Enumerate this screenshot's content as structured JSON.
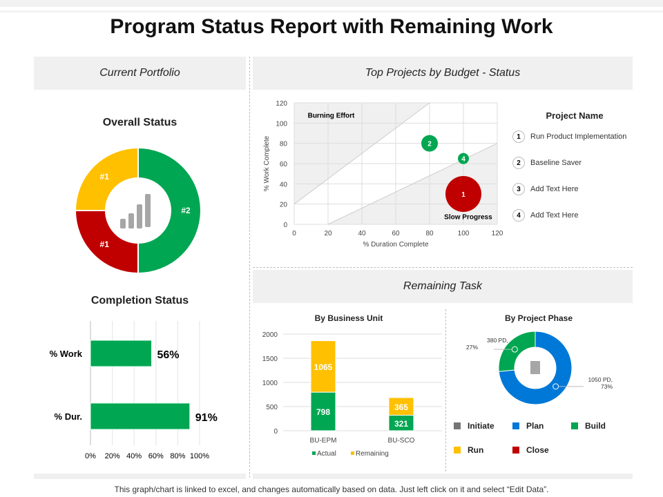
{
  "title": "Program Status Report with Remaining Work",
  "panels": {
    "current_portfolio": "Current Portfolio",
    "top_projects": "Top Projects by Budget - Status",
    "remaining_task": "Remaining Task"
  },
  "footer": "This graph/chart is linked to excel, and changes automatically based on data. Just left click on it and select “Edit Data”.",
  "colors": {
    "green": "#00a651",
    "red": "#c00000",
    "yellow": "#ffc000",
    "blue": "#0078d7",
    "gray": "#757575"
  },
  "project_legend": {
    "title": "Project Name",
    "items": [
      {
        "num": "1",
        "name": "Run Product Implementation"
      },
      {
        "num": "2",
        "name": "Baseline Saver"
      },
      {
        "num": "3",
        "name": "Add Text Here"
      },
      {
        "num": "4",
        "name": "Add Text Here"
      }
    ]
  },
  "chart_data": [
    {
      "id": "overall",
      "type": "pie",
      "title": "Overall Status",
      "slices": [
        {
          "label": "#2",
          "value": 50,
          "color": "#00a651"
        },
        {
          "label": "#1",
          "value": 25,
          "color": "#c00000"
        },
        {
          "label": "#1",
          "value": 25,
          "color": "#ffc000"
        }
      ]
    },
    {
      "id": "completion",
      "type": "bar",
      "title": "Completion Status",
      "categories": [
        "% Work",
        "% Dur."
      ],
      "values": [
        56,
        91
      ],
      "labels": [
        "56%",
        "91%"
      ],
      "xticks": [
        "0%",
        "20%",
        "40%",
        "60%",
        "80%",
        "100%"
      ],
      "xlim": [
        0,
        100
      ]
    },
    {
      "id": "scatter",
      "type": "scatter",
      "xlabel": "% Duration Complete",
      "ylabel": "% Work Complete",
      "xlim": [
        0,
        120
      ],
      "ylim": [
        0,
        120
      ],
      "xticks": [
        0,
        20,
        40,
        60,
        80,
        100,
        120
      ],
      "yticks": [
        0,
        20,
        40,
        60,
        80,
        100,
        120
      ],
      "annotations": [
        "Burning Effort",
        "Slow Progress"
      ],
      "points": [
        {
          "label": "2",
          "x": 80,
          "y": 80,
          "size": 12,
          "color": "#00a651"
        },
        {
          "label": "4",
          "x": 100,
          "y": 65,
          "size": 8,
          "color": "#00a651"
        },
        {
          "label": "1",
          "x": 100,
          "y": 30,
          "size": 26,
          "color": "#c00000"
        }
      ]
    },
    {
      "id": "business_unit",
      "type": "bar",
      "title": "By Business Unit",
      "categories": [
        "BU-EPM",
        "BU-SCO"
      ],
      "ylim": [
        0,
        2000
      ],
      "yticks": [
        0,
        500,
        1000,
        1500,
        2000
      ],
      "series": [
        {
          "name": "Actual",
          "values": [
            798,
            321
          ],
          "color": "#00a651"
        },
        {
          "name": "Remaining",
          "values": [
            1065,
            365
          ],
          "color": "#ffc000"
        }
      ]
    },
    {
      "id": "project_phase",
      "type": "pie",
      "title": "By Project Phase",
      "slices": [
        {
          "label": "1050 PD,",
          "pct": "73%",
          "value": 1050,
          "color": "#0078d7"
        },
        {
          "label": "380 PD,",
          "pct": "27%",
          "value": 380,
          "color": "#00a651"
        }
      ],
      "legend": [
        {
          "name": "Initiate",
          "color": "#757575"
        },
        {
          "name": "Plan",
          "color": "#0078d7"
        },
        {
          "name": "Build",
          "color": "#00a651"
        },
        {
          "name": "Run",
          "color": "#ffc000"
        },
        {
          "name": "Close",
          "color": "#c00000"
        }
      ]
    }
  ]
}
